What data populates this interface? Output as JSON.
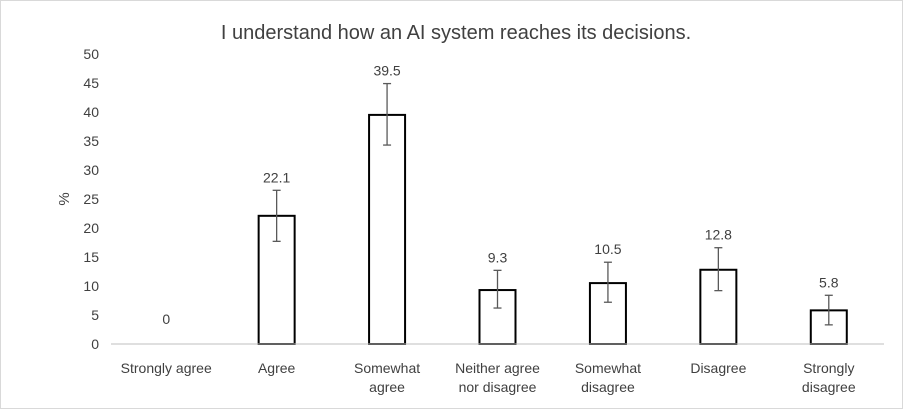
{
  "chart_data": {
    "type": "bar",
    "title": "I understand how an AI system reaches its decisions.",
    "xlabel": "",
    "ylabel": "%",
    "ylim": [
      0,
      50
    ],
    "yticks": [
      0,
      5,
      10,
      15,
      20,
      25,
      30,
      35,
      40,
      45,
      50
    ],
    "grid": false,
    "legend": "none",
    "categories": [
      [
        "Strongly agree"
      ],
      [
        "Agree"
      ],
      [
        "Somewhat",
        "agree"
      ],
      [
        "Neither agree",
        "nor disagree"
      ],
      [
        "Somewhat",
        "disagree"
      ],
      [
        "Disagree"
      ],
      [
        "Strongly",
        "disagree"
      ]
    ],
    "values": [
      0,
      22.1,
      39.5,
      9.3,
      10.5,
      12.8,
      5.8
    ],
    "data_labels": [
      "0",
      "22.1",
      "39.5",
      "9.3",
      "10.5",
      "12.8",
      "5.8"
    ],
    "error_bars": [
      [
        0,
        0
      ],
      [
        17.7,
        26.5
      ],
      [
        34.3,
        44.9
      ],
      [
        6.2,
        12.7
      ],
      [
        7.2,
        14.1
      ],
      [
        9.2,
        16.6
      ],
      [
        3.3,
        8.4
      ]
    ],
    "colors": {
      "bar_fill": "#ffffff",
      "bar_stroke": "#000000",
      "error_bar": "#595959",
      "axis": "#bfbfbf"
    }
  }
}
